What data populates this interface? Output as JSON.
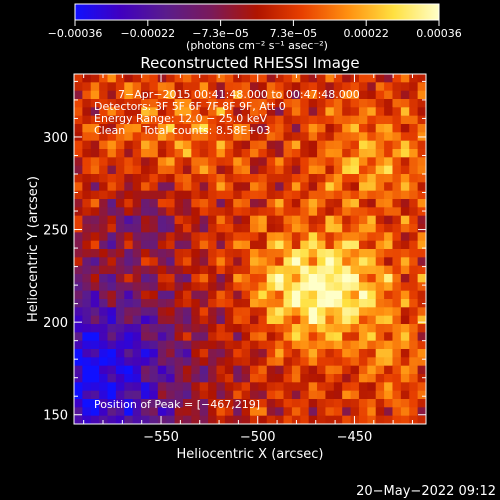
{
  "chart_data": {
    "type": "heatmap",
    "title": "Reconstructed RHESSI Image",
    "xlabel": "Heliocentric X (arcsec)",
    "ylabel": "Heliocentric Y (arcsec)",
    "xlim": [
      -595,
      -413
    ],
    "ylim": [
      145,
      334
    ],
    "x_ticks": [
      -550,
      -500,
      -450
    ],
    "y_ticks": [
      150,
      200,
      250,
      300
    ],
    "x_tick_labels": [
      "−550",
      "−500",
      "−450"
    ],
    "y_tick_labels": [
      "150",
      "200",
      "250",
      "300"
    ],
    "colorbar": {
      "min": -0.00036,
      "max": 0.00036,
      "tick_labels": [
        "−0.00036",
        "−0.00022",
        "−7.3e−05",
        "7.3e−05",
        "0.00022",
        "0.00036"
      ],
      "units_label": "(photons cm⁻² s⁻¹ asec⁻²)",
      "colors": [
        "#1010ff",
        "#4000c0",
        "#5a1c8c",
        "#7a1a5a",
        "#b01400",
        "#e84000",
        "#ff9010",
        "#ffe040",
        "#ffffc8"
      ]
    },
    "info_lines": [
      "7−Apr−2015 00:41:48.000 to 00:47:48.000",
      "Detectors: 3F 5F 6F 7F 8F 9F, Att 0",
      "Energy Range: 12.0 − 25.0 keV",
      "Clean     Total counts: 8.58E+03"
    ],
    "peak_label": "Position of Peak = [−467,219]",
    "peak": [
      -467,
      219
    ],
    "date_stamp": "20−May−2022 09:12"
  }
}
